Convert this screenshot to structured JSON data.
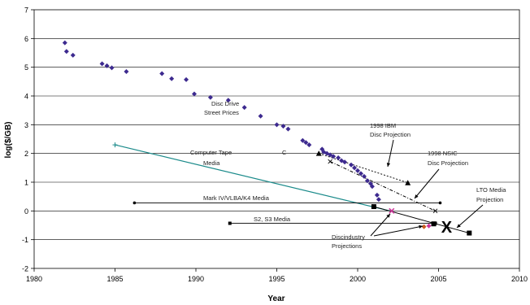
{
  "chart_data": {
    "type": "scatter",
    "title": "",
    "xlabel": "Year",
    "ylabel": "log($/GB)",
    "xlim": [
      1980,
      2010
    ],
    "ylim": [
      -2,
      7
    ],
    "x_ticks": [
      "1980",
      "1985",
      "1990",
      "1995",
      "2000",
      "2005",
      "2010"
    ],
    "y_ticks": [
      "-2",
      "-1",
      "0",
      "1",
      "2",
      "3",
      "4",
      "5",
      "6",
      "7"
    ],
    "grid": true,
    "disc_prices": [
      [
        1981.9,
        5.85
      ],
      [
        1982.0,
        5.55
      ],
      [
        1982.4,
        5.42
      ],
      [
        1984.2,
        5.12
      ],
      [
        1984.5,
        5.05
      ],
      [
        1984.8,
        4.98
      ],
      [
        1985.7,
        4.85
      ],
      [
        1987.9,
        4.78
      ],
      [
        1988.5,
        4.6
      ],
      [
        1989.4,
        4.57
      ],
      [
        1989.9,
        4.07
      ],
      [
        1990.9,
        3.95
      ],
      [
        1992.0,
        3.85
      ],
      [
        1993.0,
        3.6
      ],
      [
        1994.0,
        3.3
      ],
      [
        1995.0,
        3.0
      ],
      [
        1995.4,
        2.95
      ],
      [
        1995.7,
        2.85
      ],
      [
        1996.6,
        2.45
      ],
      [
        1996.8,
        2.38
      ],
      [
        1997.0,
        2.3
      ],
      [
        1997.8,
        2.15
      ],
      [
        1997.9,
        2.05
      ],
      [
        1998.1,
        2.0
      ],
      [
        1998.3,
        1.95
      ],
      [
        1998.5,
        1.9
      ],
      [
        1998.8,
        1.85
      ],
      [
        1999.0,
        1.75
      ],
      [
        1999.2,
        1.7
      ],
      [
        1999.6,
        1.6
      ],
      [
        1999.8,
        1.5
      ],
      [
        2000.0,
        1.4
      ],
      [
        2000.2,
        1.3
      ],
      [
        2000.4,
        1.2
      ],
      [
        2000.6,
        1.05
      ],
      [
        2000.8,
        0.95
      ],
      [
        2000.9,
        0.85
      ],
      [
        2001.2,
        0.55
      ],
      [
        2001.3,
        0.4
      ]
    ],
    "ibm_projection": [
      [
        1997.6,
        2.0
      ],
      [
        2003.1,
        0.98
      ]
    ],
    "nsic_projection": [
      [
        1998.3,
        1.72
      ],
      [
        2004.8,
        0.0
      ]
    ],
    "tape_line": [
      [
        1985.0,
        2.3
      ],
      [
        2002.0,
        0.0
      ]
    ],
    "mark_iv_line": [
      [
        1986.2,
        0.28
      ],
      [
        2005.1,
        0.28
      ]
    ],
    "s2_s3_line": [
      [
        1992.1,
        -0.43
      ],
      [
        2004.8,
        -0.43
      ]
    ],
    "lto_line": [
      [
        2001.0,
        0.15
      ],
      [
        2006.9,
        -0.77
      ]
    ],
    "lto_points": [
      [
        2001.0,
        0.15
      ],
      [
        2004.7,
        -0.45
      ],
      [
        2006.9,
        -0.77
      ]
    ],
    "discindustry_points": [
      [
        2002.1,
        0.0
      ],
      [
        2004.1,
        -0.55
      ],
      [
        2004.4,
        -0.52
      ]
    ],
    "x_marker": [
      2005.5,
      -0.55
    ]
  },
  "annotations": {
    "disc_drive": [
      "Disc Drive",
      "Street Prices"
    ],
    "computer_tape": [
      "Computer Tape",
      "Media"
    ],
    "c_label": "C",
    "ibm_1998": [
      "1998 IBM",
      "Disc Projection"
    ],
    "nsic_1998": [
      "1998 NSIC",
      "Disc Projection"
    ],
    "lto_media": [
      "LTO Media",
      "Projection"
    ],
    "mark_iv": "Mark IV/VLBA/K4 Media",
    "s2_s3": "S2, S3 Media",
    "discindustry": [
      "Discindustry",
      "Projections"
    ],
    "x_label": "X"
  },
  "colors": {
    "disc": "#3d2a8f",
    "tape": "#1a8a8a",
    "lines": "#000000",
    "pink": "#cc3399"
  }
}
